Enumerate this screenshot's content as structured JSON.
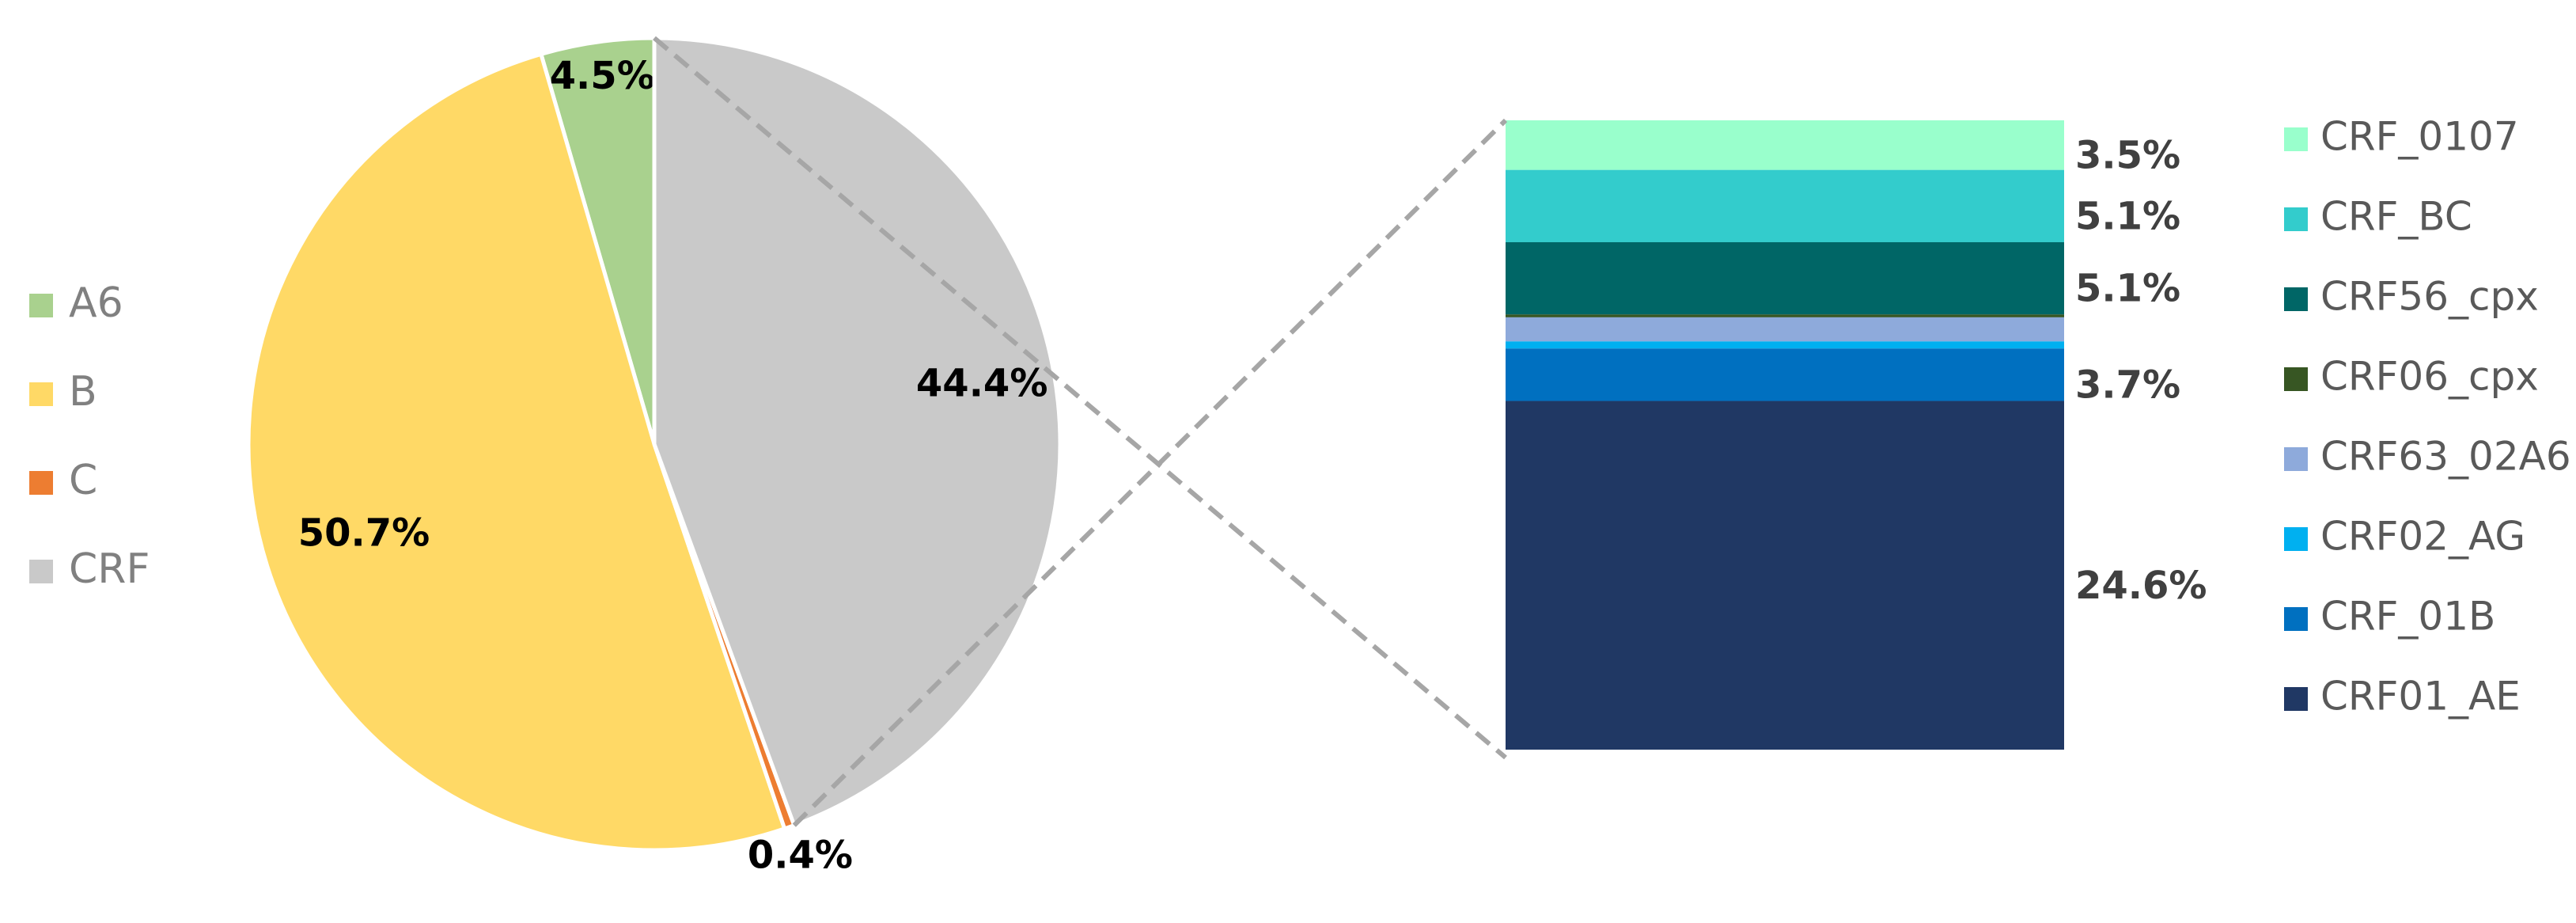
{
  "chart_data": [
    {
      "type": "pie",
      "categories": [
        "A6",
        "B",
        "C",
        "CRF"
      ],
      "values": [
        4.5,
        50.7,
        0.4,
        44.4
      ],
      "value_labels": [
        "4.5%",
        "50.7%",
        "0.4%",
        "44.4%"
      ],
      "colors": [
        "#a9d18e",
        "#ffd966",
        "#ed7d31",
        "#c9c9c9"
      ]
    },
    {
      "type": "stacked_bar",
      "series": [
        {
          "name": "CRF_0107",
          "color": "#99ffcc",
          "values": [
            3.5
          ],
          "value_labels": [
            "3.5%"
          ]
        },
        {
          "name": "CRF_BC",
          "color": "#33cccc",
          "values": [
            5.1
          ],
          "value_labels": [
            "5.1%"
          ]
        },
        {
          "name": "CRF56_cpx",
          "color": "#006666",
          "values": [
            5.1
          ],
          "value_labels": [
            "5.1%"
          ]
        },
        {
          "name": "CRF06_cpx",
          "color": "#375623",
          "values": [
            0.2
          ],
          "value_labels": [
            null
          ]
        },
        {
          "name": "CRF63_02A6",
          "color": "#8eaadb",
          "values": [
            1.7
          ],
          "value_labels": [
            null
          ]
        },
        {
          "name": "CRF02_AG",
          "color": "#00b0f0",
          "values": [
            0.5
          ],
          "value_labels": [
            null
          ]
        },
        {
          "name": "CRF_01B",
          "color": "#0070c0",
          "values": [
            3.7
          ],
          "value_labels": [
            "3.7%"
          ]
        },
        {
          "name": "CRF01_AE",
          "color": "#203864",
          "values": [
            24.6
          ],
          "value_labels": [
            "24.6%"
          ]
        }
      ]
    }
  ]
}
